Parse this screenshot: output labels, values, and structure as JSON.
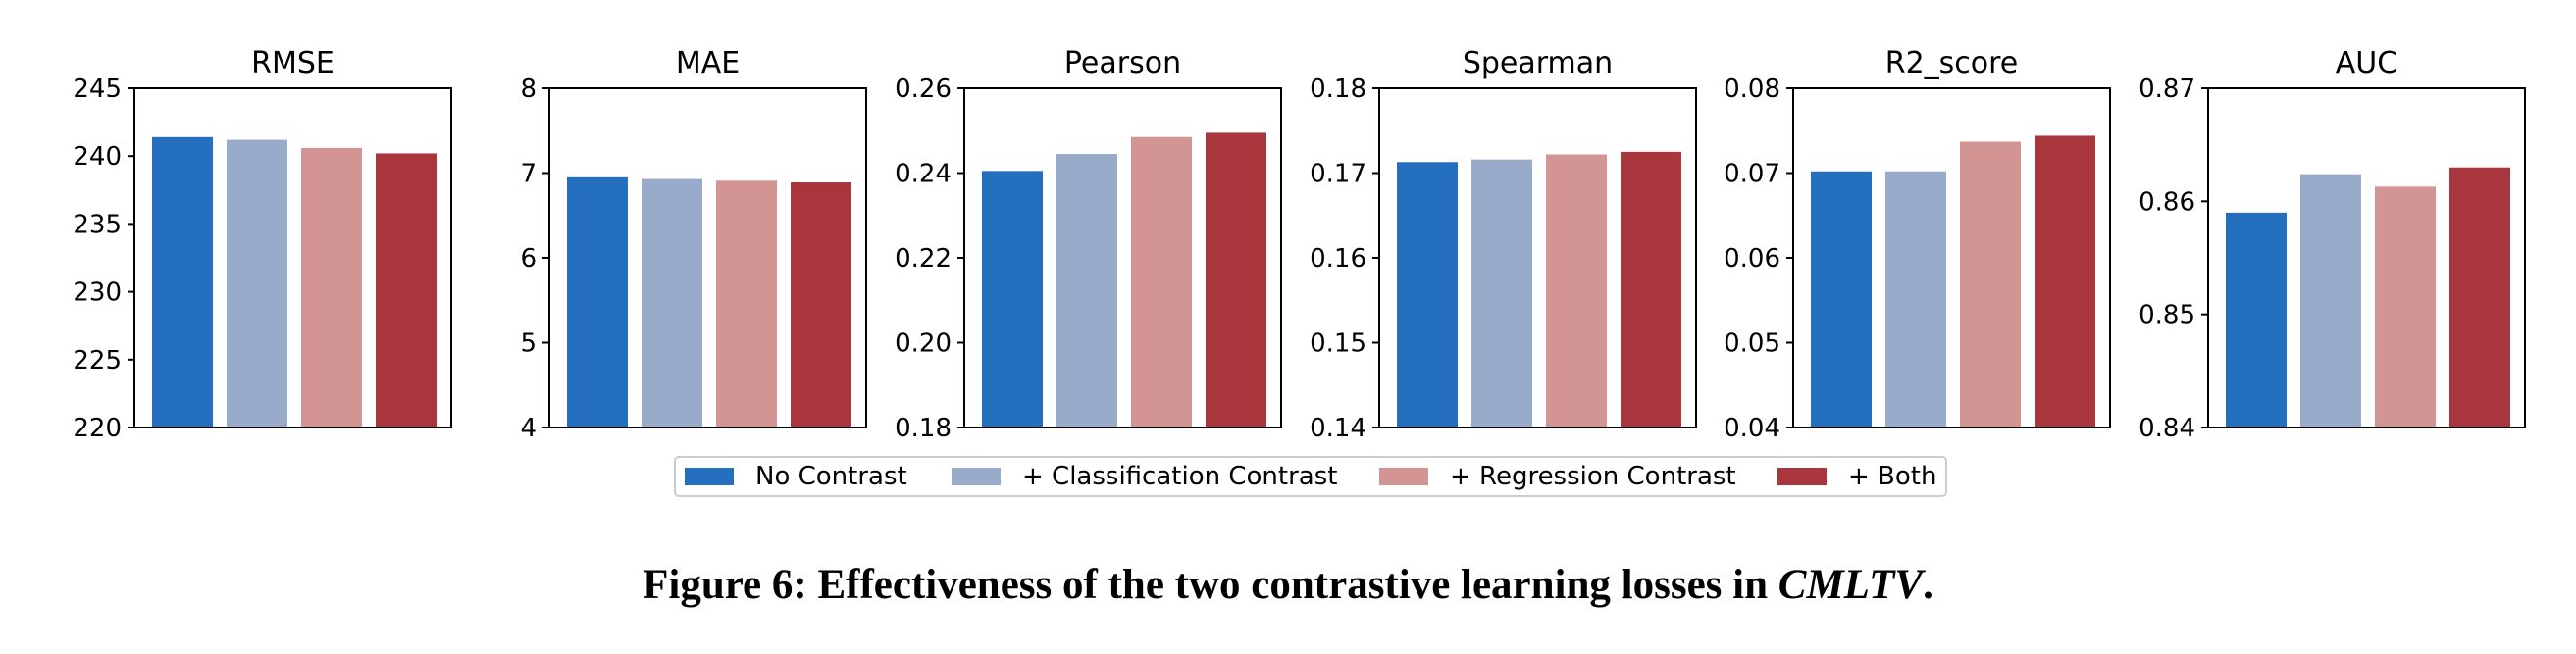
{
  "colors": {
    "no_contrast": "#246FBE",
    "classification_contrast": "#99ABCA",
    "regression_contrast": "#D39594",
    "both": "#A8363C"
  },
  "legend": {
    "no_contrast": "No Contrast",
    "classification_contrast": "+ Classification Contrast",
    "regression_contrast": "+ Regression Contrast",
    "both": "+ Both",
    "placement": "bottom-center"
  },
  "caption": {
    "prefix": "Figure 6: Effectiveness of the two contrastive learning losses in ",
    "emphasis": "CMLTV",
    "suffix": "."
  },
  "chart_data": [
    {
      "type": "bar",
      "title": "RMSE",
      "categories": [
        "No Contrast",
        "+ Classification Contrast",
        "+ Regression Contrast",
        "+ Both"
      ],
      "values": [
        241.4,
        241.2,
        240.6,
        240.2
      ],
      "ylim": [
        220,
        245
      ],
      "yticks": [
        "220",
        "225",
        "230",
        "235",
        "240",
        "245"
      ],
      "xlabel": "",
      "ylabel": "",
      "grid": false
    },
    {
      "type": "bar",
      "title": "MAE",
      "categories": [
        "No Contrast",
        "+ Classification Contrast",
        "+ Regression Contrast",
        "+ Both"
      ],
      "values": [
        6.95,
        6.93,
        6.91,
        6.89
      ],
      "ylim": [
        4,
        8
      ],
      "yticks": [
        "4",
        "5",
        "6",
        "7",
        "8"
      ],
      "xlabel": "",
      "ylabel": "",
      "grid": false
    },
    {
      "type": "bar",
      "title": "Pearson",
      "categories": [
        "No Contrast",
        "+ Classification Contrast",
        "+ Regression Contrast",
        "+ Both"
      ],
      "values": [
        0.2405,
        0.2445,
        0.2485,
        0.2495
      ],
      "ylim": [
        0.18,
        0.26
      ],
      "yticks": [
        "0.18",
        "0.20",
        "0.22",
        "0.24",
        "0.26"
      ],
      "xlabel": "",
      "ylabel": "",
      "grid": false
    },
    {
      "type": "bar",
      "title": "Spearman",
      "categories": [
        "No Contrast",
        "+ Classification Contrast",
        "+ Regression Contrast",
        "+ Both"
      ],
      "values": [
        0.1713,
        0.1716,
        0.1722,
        0.1725
      ],
      "ylim": [
        0.14,
        0.18
      ],
      "yticks": [
        "0.14",
        "0.15",
        "0.16",
        "0.17",
        "0.18"
      ],
      "xlabel": "",
      "ylabel": "",
      "grid": false
    },
    {
      "type": "bar",
      "title": "R2_score",
      "categories": [
        "No Contrast",
        "+ Classification Contrast",
        "+ Regression Contrast",
        "+ Both"
      ],
      "values": [
        0.0702,
        0.0702,
        0.0737,
        0.0744
      ],
      "ylim": [
        0.04,
        0.08
      ],
      "yticks": [
        "0.04",
        "0.05",
        "0.06",
        "0.07",
        "0.08"
      ],
      "xlabel": "",
      "ylabel": "",
      "grid": false
    },
    {
      "type": "bar",
      "title": "AUC",
      "categories": [
        "No Contrast",
        "+ Classification Contrast",
        "+ Regression Contrast",
        "+ Both"
      ],
      "values": [
        0.859,
        0.8624,
        0.8613,
        0.863
      ],
      "ylim": [
        0.84,
        0.87
      ],
      "yticks": [
        "0.84",
        "0.85",
        "0.86",
        "0.87"
      ],
      "xlabel": "",
      "ylabel": "",
      "grid": false
    }
  ]
}
